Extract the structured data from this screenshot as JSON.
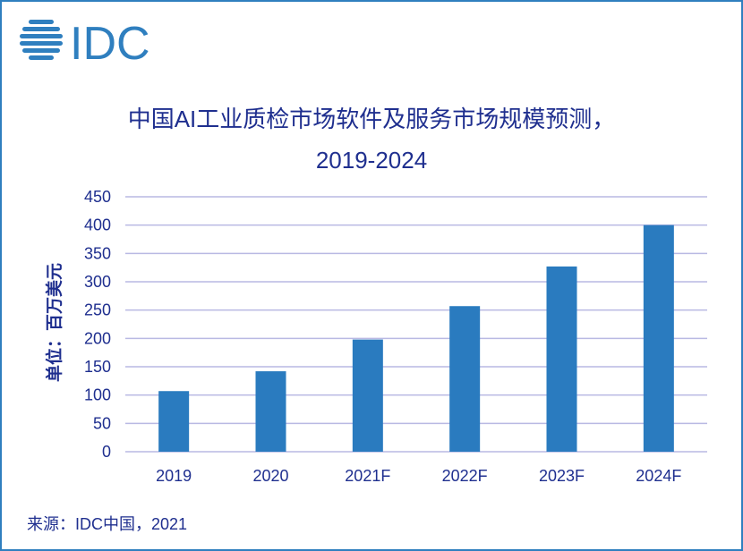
{
  "logo": {
    "text": "IDC",
    "icon": "idc-globe-logo",
    "color": "#2f7fbf"
  },
  "source": "来源：IDC中国，2021",
  "colors": {
    "bar": "#2a7bbf",
    "grid": "#b9b9e3",
    "text": "#1f2f8f",
    "border": "#2f7fbf"
  },
  "chart_data": {
    "type": "bar",
    "title_line1": "中国AI工业质检市场软件及服务市场规模预测，",
    "title_line2": "2019-2024",
    "ylabel": "单位：百万美元",
    "xlabel": "",
    "categories": [
      "2019",
      "2020",
      "2021F",
      "2022F",
      "2023F",
      "2024F"
    ],
    "values": [
      107,
      142,
      198,
      257,
      327,
      400
    ],
    "ylim": [
      0,
      450
    ],
    "yticks": [
      0,
      50,
      100,
      150,
      200,
      250,
      300,
      350,
      400,
      450
    ],
    "grid": true,
    "legend": "none"
  }
}
